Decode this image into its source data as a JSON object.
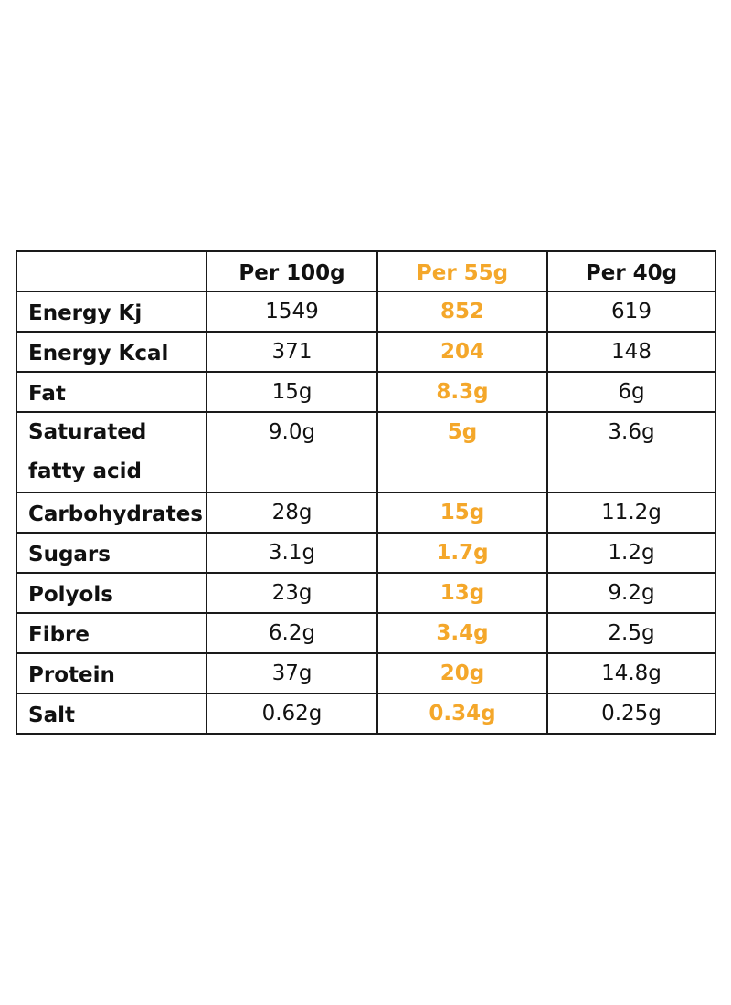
{
  "accent_color": "#f4a72a",
  "columns": [
    "",
    "Per 100g",
    "Per 55g",
    "Per 40g"
  ],
  "rows": [
    {
      "label": "Energy Kj",
      "per_100g": "1549",
      "per_55g": "852",
      "per_40g": "619"
    },
    {
      "label": "Energy Kcal",
      "per_100g": "371",
      "per_55g": "204",
      "per_40g": "148"
    },
    {
      "label": "Fat",
      "per_100g": "15g",
      "per_55g": "8.3g",
      "per_40g": "6g"
    },
    {
      "label": "Saturated fatty acid",
      "per_100g": "9.0g",
      "per_55g": "5g",
      "per_40g": "3.6g"
    },
    {
      "label": "Carbohydrates",
      "per_100g": "28g",
      "per_55g": "15g",
      "per_40g": "11.2g"
    },
    {
      "label": "Sugars",
      "per_100g": "3.1g",
      "per_55g": "1.7g",
      "per_40g": "1.2g"
    },
    {
      "label": "Polyols",
      "per_100g": "23g",
      "per_55g": "13g",
      "per_40g": "9.2g"
    },
    {
      "label": "Fibre",
      "per_100g": "6.2g",
      "per_55g": "3.4g",
      "per_40g": "2.5g"
    },
    {
      "label": "Protein",
      "per_100g": "37g",
      "per_55g": "20g",
      "per_40g": "14.8g"
    },
    {
      "label": "Salt",
      "per_100g": "0.62g",
      "per_55g": "0.34g",
      "per_40g": "0.25g"
    }
  ]
}
